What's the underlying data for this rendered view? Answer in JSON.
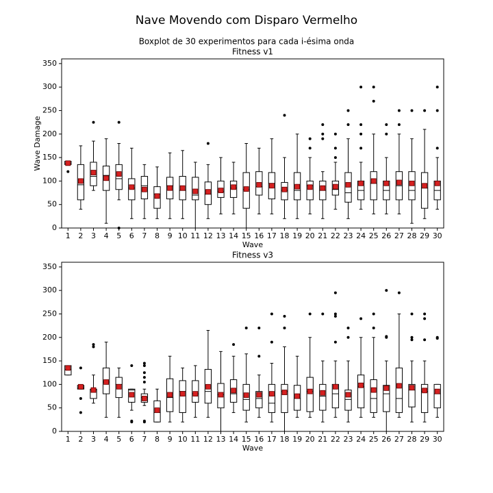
{
  "title": "Nave Movendo com Disparo Vermelho",
  "subtitle": "Boxplot de 30 experimentos para cada i-ésima onda",
  "chart_data": [
    {
      "type": "box",
      "title": "Fitness v1",
      "xlabel": "Wave",
      "ylabel": "Wave Damage",
      "ylim": [
        0,
        360
      ],
      "yticks": [
        0,
        50,
        100,
        150,
        200,
        250,
        300,
        350
      ],
      "categories": [
        "1",
        "2",
        "3",
        "4",
        "5",
        "6",
        "7",
        "8",
        "9",
        "10",
        "11",
        "12",
        "13",
        "14",
        "15",
        "16",
        "17",
        "18",
        "19",
        "20",
        "21",
        "22",
        "23",
        "24",
        "25",
        "26",
        "27",
        "28",
        "29",
        "30"
      ],
      "boxes": [
        {
          "whislo": 135,
          "q1": 135,
          "med": 138,
          "q3": 142,
          "whishi": 142,
          "mean": 138,
          "fliers": [
            120
          ]
        },
        {
          "whislo": 40,
          "q1": 60,
          "med": 92,
          "q3": 135,
          "whishi": 175,
          "mean": 100,
          "fliers": []
        },
        {
          "whislo": 80,
          "q1": 90,
          "med": 110,
          "q3": 140,
          "whishi": 185,
          "mean": 118,
          "fliers": [
            225
          ]
        },
        {
          "whislo": 10,
          "q1": 80,
          "med": 112,
          "q3": 132,
          "whishi": 190,
          "mean": 106,
          "fliers": []
        },
        {
          "whislo": 60,
          "q1": 82,
          "med": 105,
          "q3": 135,
          "whishi": 180,
          "mean": 115,
          "fliers": [
            0,
            225
          ]
        },
        {
          "whislo": 20,
          "q1": 60,
          "med": 85,
          "q3": 105,
          "whishi": 170,
          "mean": 87,
          "fliers": []
        },
        {
          "whislo": 20,
          "q1": 62,
          "med": 90,
          "q3": 110,
          "whishi": 135,
          "mean": 82,
          "fliers": []
        },
        {
          "whislo": 20,
          "q1": 42,
          "med": 72,
          "q3": 88,
          "whishi": 130,
          "mean": 68,
          "fliers": []
        },
        {
          "whislo": 20,
          "q1": 62,
          "med": 90,
          "q3": 108,
          "whishi": 160,
          "mean": 85,
          "fliers": []
        },
        {
          "whislo": 20,
          "q1": 60,
          "med": 80,
          "q3": 110,
          "whishi": 165,
          "mean": 85,
          "fliers": []
        },
        {
          "whislo": 0,
          "q1": 60,
          "med": 70,
          "q3": 108,
          "whishi": 140,
          "mean": 78,
          "fliers": []
        },
        {
          "whislo": 20,
          "q1": 50,
          "med": 72,
          "q3": 98,
          "whishi": 135,
          "mean": 77,
          "fliers": [
            180
          ]
        },
        {
          "whislo": 30,
          "q1": 65,
          "med": 78,
          "q3": 100,
          "whishi": 150,
          "mean": 80,
          "fliers": []
        },
        {
          "whislo": 30,
          "q1": 65,
          "med": 85,
          "q3": 100,
          "whishi": 140,
          "mean": 87,
          "fliers": []
        },
        {
          "whislo": 0,
          "q1": 42,
          "med": 82,
          "q3": 118,
          "whishi": 180,
          "mean": 83,
          "fliers": []
        },
        {
          "whislo": 30,
          "q1": 70,
          "med": 88,
          "q3": 120,
          "whishi": 170,
          "mean": 92,
          "fliers": []
        },
        {
          "whislo": 30,
          "q1": 62,
          "med": 95,
          "q3": 118,
          "whishi": 190,
          "mean": 90,
          "fliers": []
        },
        {
          "whislo": 20,
          "q1": 60,
          "med": 80,
          "q3": 97,
          "whishi": 150,
          "mean": 82,
          "fliers": [
            240
          ]
        },
        {
          "whislo": 20,
          "q1": 60,
          "med": 80,
          "q3": 118,
          "whishi": 200,
          "mean": 88,
          "fliers": []
        },
        {
          "whislo": 30,
          "q1": 60,
          "med": 90,
          "q3": 100,
          "whishi": 150,
          "mean": 87,
          "fliers": [
            170,
            190
          ]
        },
        {
          "whislo": 20,
          "q1": 60,
          "med": 80,
          "q3": 100,
          "whishi": 120,
          "mean": 85,
          "fliers": [
            190,
            200,
            220
          ]
        },
        {
          "whislo": 40,
          "q1": 70,
          "med": 82,
          "q3": 100,
          "whishi": 140,
          "mean": 88,
          "fliers": [
            150,
            170,
            200
          ]
        },
        {
          "whislo": 20,
          "q1": 55,
          "med": 75,
          "q3": 118,
          "whishi": 190,
          "mean": 92,
          "fliers": [
            220,
            250
          ]
        },
        {
          "whislo": 40,
          "q1": 60,
          "med": 80,
          "q3": 100,
          "whishi": 140,
          "mean": 95,
          "fliers": [
            170,
            200,
            220,
            300
          ]
        },
        {
          "whislo": 30,
          "q1": 60,
          "med": 95,
          "q3": 120,
          "whishi": 200,
          "mean": 100,
          "fliers": [
            270,
            300
          ]
        },
        {
          "whislo": 30,
          "q1": 60,
          "med": 80,
          "q3": 100,
          "whishi": 150,
          "mean": 95,
          "fliers": [
            200,
            220
          ]
        },
        {
          "whislo": 30,
          "q1": 60,
          "med": 90,
          "q3": 120,
          "whishi": 200,
          "mean": 97,
          "fliers": [
            220,
            250
          ]
        },
        {
          "whislo": 10,
          "q1": 60,
          "med": 80,
          "q3": 120,
          "whishi": 190,
          "mean": 95,
          "fliers": [
            250
          ]
        },
        {
          "whislo": 20,
          "q1": 42,
          "med": 85,
          "q3": 118,
          "whishi": 210,
          "mean": 90,
          "fliers": [
            250
          ]
        },
        {
          "whislo": 40,
          "q1": 60,
          "med": 80,
          "q3": 100,
          "whishi": 150,
          "mean": 95,
          "fliers": [
            170,
            250,
            300
          ]
        }
      ]
    },
    {
      "type": "box",
      "title": "Fitness v3",
      "xlabel": "Wave",
      "ylim": [
        0,
        360
      ],
      "yticks": [
        0,
        50,
        100,
        150,
        200,
        250,
        300,
        350
      ],
      "categories": [
        "1",
        "2",
        "3",
        "4",
        "5",
        "6",
        "7",
        "8",
        "9",
        "10",
        "11",
        "12",
        "13",
        "14",
        "15",
        "16",
        "17",
        "18",
        "19",
        "20",
        "21",
        "22",
        "23",
        "24",
        "25",
        "26",
        "27",
        "28",
        "29",
        "30"
      ],
      "boxes": [
        {
          "whislo": 120,
          "q1": 120,
          "med": 132,
          "q3": 140,
          "whishi": 140,
          "mean": 135,
          "fliers": []
        },
        {
          "whislo": 90,
          "q1": 90,
          "med": 92,
          "q3": 98,
          "whishi": 98,
          "mean": 95,
          "fliers": [
            40,
            70,
            135
          ]
        },
        {
          "whislo": 60,
          "q1": 70,
          "med": 88,
          "q3": 90,
          "whishi": 120,
          "mean": 88,
          "fliers": [
            180,
            185
          ]
        },
        {
          "whislo": 30,
          "q1": 80,
          "med": 105,
          "q3": 135,
          "whishi": 190,
          "mean": 105,
          "fliers": []
        },
        {
          "whislo": 30,
          "q1": 72,
          "med": 100,
          "q3": 115,
          "whishi": 135,
          "mean": 95,
          "fliers": []
        },
        {
          "whislo": 45,
          "q1": 62,
          "med": 88,
          "q3": 90,
          "whishi": 90,
          "mean": 78,
          "fliers": [
            20,
            22,
            140
          ]
        },
        {
          "whislo": 55,
          "q1": 62,
          "med": 72,
          "q3": 80,
          "whishi": 90,
          "mean": 70,
          "fliers": [
            20,
            22,
            105,
            115,
            125,
            140,
            145
          ]
        },
        {
          "whislo": 20,
          "q1": 20,
          "med": 40,
          "q3": 65,
          "whishi": 90,
          "mean": 45,
          "fliers": []
        },
        {
          "whislo": 20,
          "q1": 42,
          "med": 72,
          "q3": 112,
          "whishi": 160,
          "mean": 78,
          "fliers": []
        },
        {
          "whislo": 20,
          "q1": 40,
          "med": 85,
          "q3": 108,
          "whishi": 135,
          "mean": 80,
          "fliers": []
        },
        {
          "whislo": 30,
          "q1": 62,
          "med": 80,
          "q3": 108,
          "whishi": 140,
          "mean": 80,
          "fliers": []
        },
        {
          "whislo": 30,
          "q1": 60,
          "med": 85,
          "q3": 132,
          "whishi": 215,
          "mean": 95,
          "fliers": []
        },
        {
          "whislo": 0,
          "q1": 50,
          "med": 78,
          "q3": 102,
          "whishi": 170,
          "mean": 78,
          "fliers": []
        },
        {
          "whislo": 40,
          "q1": 62,
          "med": 80,
          "q3": 110,
          "whishi": 160,
          "mean": 87,
          "fliers": [
            185
          ]
        },
        {
          "whislo": 20,
          "q1": 45,
          "med": 68,
          "q3": 100,
          "whishi": 165,
          "mean": 77,
          "fliers": [
            220
          ]
        },
        {
          "whislo": 30,
          "q1": 50,
          "med": 70,
          "q3": 85,
          "whishi": 120,
          "mean": 78,
          "fliers": [
            160,
            220
          ]
        },
        {
          "whislo": 20,
          "q1": 40,
          "med": 60,
          "q3": 100,
          "whishi": 145,
          "mean": 80,
          "fliers": [
            190,
            250
          ]
        },
        {
          "whislo": 0,
          "q1": 40,
          "med": 85,
          "q3": 100,
          "whishi": 180,
          "mean": 83,
          "fliers": [
            220,
            245
          ]
        },
        {
          "whislo": 30,
          "q1": 45,
          "med": 70,
          "q3": 98,
          "whishi": 160,
          "mean": 75,
          "fliers": []
        },
        {
          "whislo": 30,
          "q1": 42,
          "med": 85,
          "q3": 115,
          "whishi": 200,
          "mean": 85,
          "fliers": [
            250
          ]
        },
        {
          "whislo": 20,
          "q1": 45,
          "med": 75,
          "q3": 100,
          "whishi": 150,
          "mean": 82,
          "fliers": [
            250
          ]
        },
        {
          "whislo": 30,
          "q1": 50,
          "med": 80,
          "q3": 100,
          "whishi": 150,
          "mean": 95,
          "fliers": [
            190,
            245,
            250,
            295
          ]
        },
        {
          "whislo": 20,
          "q1": 45,
          "med": 68,
          "q3": 88,
          "whishi": 150,
          "mean": 78,
          "fliers": [
            200,
            220
          ]
        },
        {
          "whislo": 30,
          "q1": 50,
          "med": 95,
          "q3": 120,
          "whishi": 200,
          "mean": 98,
          "fliers": [
            240
          ]
        },
        {
          "whislo": 30,
          "q1": 40,
          "med": 70,
          "q3": 110,
          "whishi": 200,
          "mean": 88,
          "fliers": [
            220,
            250
          ]
        },
        {
          "whislo": 0,
          "q1": 42,
          "med": 80,
          "q3": 98,
          "whishi": 150,
          "mean": 92,
          "fliers": [
            200,
            202,
            300
          ]
        },
        {
          "whislo": 30,
          "q1": 40,
          "med": 70,
          "q3": 135,
          "whishi": 250,
          "mean": 97,
          "fliers": [
            295
          ]
        },
        {
          "whislo": 20,
          "q1": 52,
          "med": 88,
          "q3": 100,
          "whishi": 150,
          "mean": 93,
          "fliers": [
            195,
            200,
            250
          ]
        },
        {
          "whislo": 20,
          "q1": 40,
          "med": 85,
          "q3": 100,
          "whishi": 150,
          "mean": 87,
          "fliers": [
            195,
            240,
            250
          ]
        },
        {
          "whislo": 30,
          "q1": 50,
          "med": 80,
          "q3": 100,
          "whishi": 100,
          "mean": 85,
          "fliers": [
            198,
            200
          ]
        }
      ]
    }
  ]
}
